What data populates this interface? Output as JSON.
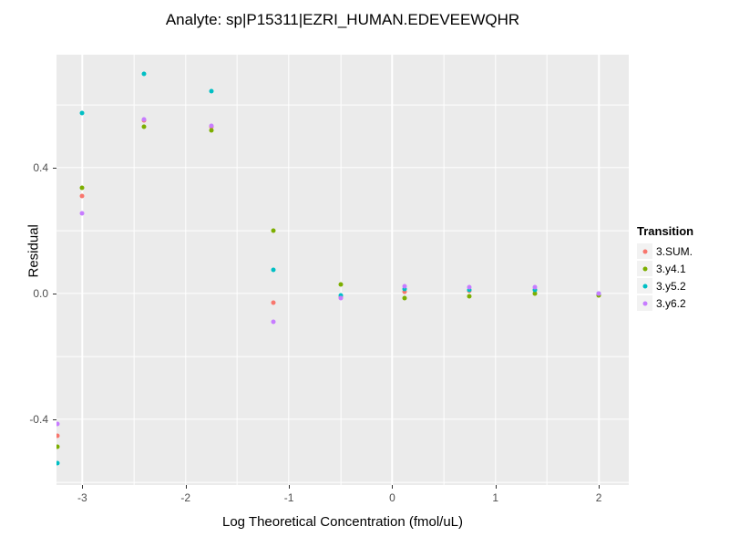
{
  "title": "Analyte: sp|P15311|EZRI_HUMAN.EDEVEEWQHR",
  "panel_background": "#EBEBEB",
  "gridline_color": "#FFFFFF",
  "axis_text_color": "#4D4D4D",
  "legend": {
    "title": "Transition",
    "items": [
      "3.SUM.",
      "3.y4.1",
      "3.y5.2",
      "3.y6.2"
    ]
  },
  "chart_data": {
    "type": "scatter",
    "title": "Analyte: sp|P15311|EZRI_HUMAN.EDEVEEWQHR",
    "xlabel": "Log Theoretical Concentration (fmol/uL)",
    "ylabel": "Residual",
    "xlim": [
      -3.25,
      2.29
    ],
    "ylim": [
      -0.61,
      0.76
    ],
    "grid": true,
    "legend_title": "Transition",
    "legend_position": "right",
    "x_ticks": [
      {
        "v": -3,
        "label": "-3"
      },
      {
        "v": -2,
        "label": "-2"
      },
      {
        "v": -1,
        "label": "-1"
      },
      {
        "v": 0,
        "label": "0"
      },
      {
        "v": 1,
        "label": "1"
      },
      {
        "v": 2,
        "label": "2"
      }
    ],
    "y_ticks": [
      {
        "v": -0.4,
        "label": "-0.4"
      },
      {
        "v": 0.0,
        "label": "0.0"
      },
      {
        "v": 0.4,
        "label": "0.4"
      }
    ],
    "x_minor": [
      -2.5,
      -1.5,
      -0.5,
      0.5,
      1.5
    ],
    "y_minor": [
      -0.6,
      -0.2,
      0.2,
      0.6
    ],
    "x": [
      -3.24,
      -3.0,
      -2.4,
      -1.75,
      -1.15,
      -0.5,
      0.12,
      0.75,
      1.38,
      2.0
    ],
    "series": [
      {
        "name": "3.SUM.",
        "color": "#F8766D",
        "values": [
          -0.452,
          0.31,
          0.552,
          0.532,
          -0.03,
          -0.012,
          0.005,
          0.008,
          0.01,
          -0.005
        ]
      },
      {
        "name": "3.y4.1",
        "color": "#7CAE00",
        "values": [
          -0.487,
          0.335,
          0.53,
          0.518,
          0.2,
          0.03,
          -0.015,
          -0.01,
          0.0,
          -0.005
        ]
      },
      {
        "name": "3.y5.2",
        "color": "#00BFC4",
        "values": [
          -0.539,
          0.575,
          0.7,
          0.645,
          0.075,
          -0.005,
          0.015,
          0.012,
          0.012,
          0.0
        ]
      },
      {
        "name": "3.y6.2",
        "color": "#C77CFF",
        "values": [
          -0.415,
          0.255,
          0.555,
          0.535,
          -0.09,
          -0.015,
          0.022,
          0.02,
          0.02,
          0.0
        ]
      }
    ]
  }
}
